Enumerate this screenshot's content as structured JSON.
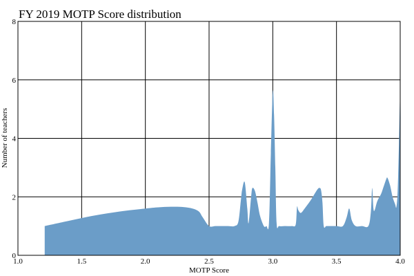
{
  "chart_data": {
    "type": "area",
    "title": "FY 2019 MOTP Score distribution",
    "xlabel": "MOTP Score",
    "ylabel": "Number of teachers",
    "xlim": [
      1.0,
      4.0
    ],
    "ylim": [
      0,
      8
    ],
    "x_ticks": [
      "1.0",
      "1.5",
      "2.0",
      "2.5",
      "3.0",
      "3.5",
      "4.0"
    ],
    "y_ticks": [
      "0",
      "2",
      "4",
      "6",
      "8"
    ],
    "grid": true,
    "color": "#6b9dc8",
    "series": [
      {
        "x": [
          1.21,
          1.4,
          1.6,
          1.8,
          2.0,
          2.1,
          2.2,
          2.3,
          2.37,
          2.42,
          2.45,
          2.5,
          2.55,
          2.6,
          2.65,
          2.7,
          2.73,
          2.75,
          2.76,
          2.78,
          2.8,
          2.81,
          2.83,
          2.84,
          2.86,
          2.88,
          2.9,
          2.93,
          2.95,
          2.97,
          2.985,
          3.0,
          3.01,
          3.02,
          3.03,
          3.05,
          3.1,
          3.15,
          3.18,
          3.19,
          3.2,
          3.22,
          3.25,
          3.3,
          3.35,
          3.37,
          3.38,
          3.39,
          3.4,
          3.42,
          3.45,
          3.5,
          3.55,
          3.58,
          3.6,
          3.62,
          3.65,
          3.7,
          3.75,
          3.77,
          3.78,
          3.79,
          3.8,
          3.82,
          3.85,
          3.87,
          3.89,
          3.9,
          3.92,
          3.94,
          3.96,
          3.97,
          3.98,
          3.99,
          4.0
        ],
        "y": [
          1.0,
          1.18,
          1.36,
          1.5,
          1.6,
          1.64,
          1.66,
          1.65,
          1.6,
          1.5,
          1.3,
          1.0,
          1.0,
          1.0,
          1.0,
          1.0,
          1.15,
          1.9,
          2.25,
          2.5,
          1.6,
          1.1,
          2.0,
          2.3,
          2.2,
          1.8,
          1.35,
          1.0,
          1.0,
          1.1,
          3.5,
          5.6,
          4.8,
          3.0,
          1.1,
          1.0,
          1.0,
          1.0,
          1.05,
          1.65,
          1.55,
          1.45,
          1.6,
          1.9,
          2.25,
          2.3,
          2.2,
          1.8,
          1.0,
          1.0,
          1.0,
          1.0,
          1.0,
          1.3,
          1.6,
          1.2,
          1.0,
          1.0,
          1.0,
          1.5,
          2.3,
          1.6,
          1.55,
          1.85,
          2.1,
          2.35,
          2.6,
          2.65,
          2.4,
          2.0,
          1.75,
          1.65,
          2.2,
          3.8,
          5.8
        ]
      }
    ]
  }
}
